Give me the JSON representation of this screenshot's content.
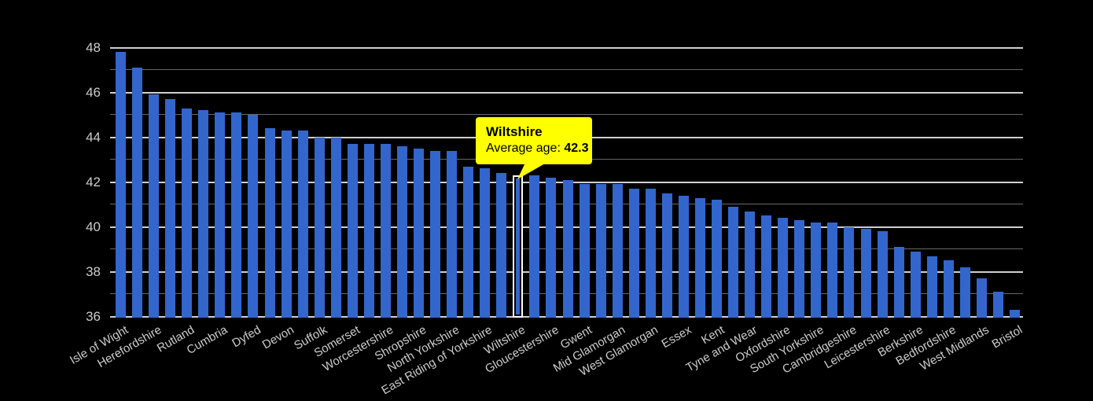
{
  "page": {
    "background": "#000000",
    "text_color": "#cccccc"
  },
  "chart_data": {
    "type": "bar",
    "title": "",
    "xlabel": "",
    "ylabel": "",
    "ylim": [
      36,
      48
    ],
    "yticks": [
      36,
      38,
      40,
      42,
      44,
      46,
      48
    ],
    "grid": "horizontal lines every 1 unit; brighter major lines every 2 units at labeled ticks",
    "legend": "none",
    "bar_color": "#3366cc",
    "categories": [
      "Isle of Wight",
      "",
      "Herefordshire",
      "",
      "Rutland",
      "",
      "Cumbria",
      "",
      "Dyfed",
      "",
      "Devon",
      "",
      "Suffolk",
      "",
      "Somerset",
      "",
      "Worcestershire",
      "",
      "Shropshire",
      "",
      "North Yorkshire",
      "",
      "East Riding of Yorkshire",
      "",
      "Wiltshire",
      "",
      "Gloucestershire",
      "",
      "Gwent",
      "",
      "Mid Glamorgan",
      "",
      "West Glamorgan",
      "",
      "Essex",
      "",
      "Kent",
      "",
      "Tyne and Wear",
      "",
      "Oxfordshire",
      "",
      "South Yorkshire",
      "",
      "Cambridgeshire",
      "",
      "Leicestershire",
      "",
      "Berkshire",
      "",
      "Bedfordshire",
      "",
      "West Midlands",
      "",
      "Bristol"
    ],
    "values": [
      47.8,
      47.1,
      45.9,
      45.7,
      45.3,
      45.2,
      45.1,
      45.1,
      45.0,
      44.4,
      44.3,
      44.3,
      44.0,
      44.0,
      43.7,
      43.7,
      43.7,
      43.6,
      43.5,
      43.4,
      43.4,
      42.7,
      42.6,
      42.4,
      42.3,
      42.3,
      42.2,
      42.1,
      41.9,
      41.9,
      41.9,
      41.7,
      41.7,
      41.5,
      41.4,
      41.3,
      41.2,
      40.9,
      40.7,
      40.5,
      40.4,
      40.3,
      40.2,
      40.2,
      40.0,
      39.9,
      39.8,
      39.1,
      38.9,
      38.7,
      38.5,
      38.2,
      37.7,
      37.1,
      36.3
    ],
    "highlight": {
      "index": 24,
      "category": "Wiltshire",
      "value": 42.3,
      "style": "white outlined bar with tooltip callout"
    }
  },
  "tooltip": {
    "title": "Wiltshire",
    "metric_label": "Average age: ",
    "value": "42.3",
    "bg_color": "#ffff00",
    "text_color": "#000000"
  }
}
